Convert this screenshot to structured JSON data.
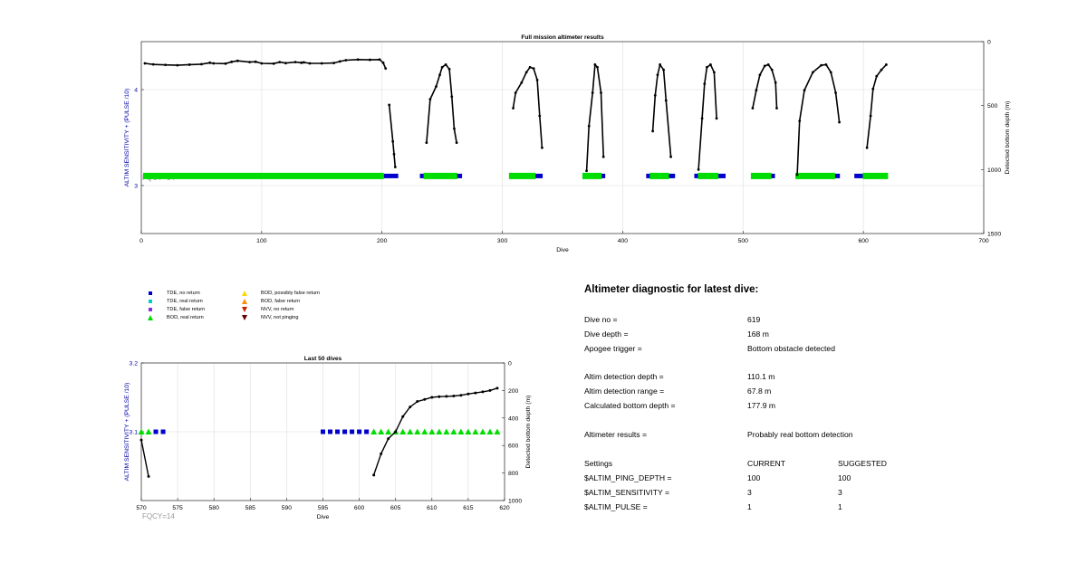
{
  "chart_data": [
    {
      "type": "scatter",
      "title": "Full mission altimeter results",
      "xlabel": "Dive",
      "ylabel_left": "ALTIM SENSITIVITY + (PULSE /10)",
      "ylabel_right": "Detected bottom depth (m)",
      "xlim": [
        0,
        700
      ],
      "ylim_left": [
        2.5,
        4.5
      ],
      "ylim_right": [
        0,
        1500
      ],
      "right_axis_reversed": true,
      "xticks": [
        "0",
        "100",
        "200",
        "300",
        "400",
        "500",
        "600",
        "700"
      ],
      "yticks_left": [
        "3",
        "4"
      ],
      "yticks_right": [
        "0",
        "500",
        "1000",
        "1500"
      ],
      "annotation": "FQCY=14",
      "grid": true,
      "series": [
        {
          "name": "TDE, no return",
          "color": "#0000cc",
          "marker": "square",
          "level": 3.1,
          "segments": [
            [
              203,
              212
            ],
            [
              233,
              237
            ],
            [
              262,
              265
            ],
            [
              327,
              332
            ],
            [
              380,
              384
            ],
            [
              421,
              424
            ],
            [
              438,
              442
            ],
            [
              461,
              464
            ],
            [
              479,
              484
            ],
            [
              522,
              525
            ],
            [
              576,
              579
            ],
            [
              594,
              600
            ]
          ]
        },
        {
          "name": "BOD, real return",
          "color": "#00dd00",
          "marker": "triangle-up",
          "level": 3.1,
          "segments": [
            [
              3,
              200
            ],
            [
              236,
              261
            ],
            [
              307,
              326
            ],
            [
              368,
              381
            ],
            [
              424,
              437
            ],
            [
              464,
              478
            ],
            [
              508,
              522
            ],
            [
              545,
              575
            ],
            [
              601,
              619
            ]
          ]
        },
        {
          "name": "Detected bottom depth",
          "color": "#000000",
          "marker": "dot",
          "axis": "right",
          "traces": [
            [
              [
                3,
                170
              ],
              [
                10,
                178
              ],
              [
                20,
                182
              ],
              [
                30,
                185
              ],
              [
                40,
                180
              ],
              [
                50,
                176
              ],
              [
                57,
                165
              ],
              [
                60,
                170
              ],
              [
                70,
                172
              ],
              [
                75,
                158
              ],
              [
                80,
                150
              ],
              [
                90,
                160
              ],
              [
                95,
                157
              ],
              [
                100,
                170
              ],
              [
                110,
                172
              ],
              [
                115,
                160
              ],
              [
                120,
                168
              ],
              [
                128,
                160
              ],
              [
                133,
                165
              ],
              [
                135,
                162
              ],
              [
                140,
                170
              ],
              [
                150,
                170
              ],
              [
                160,
                167
              ],
              [
                165,
                155
              ],
              [
                170,
                145
              ],
              [
                180,
                140
              ],
              [
                190,
                142
              ],
              [
                198,
                140
              ],
              [
                201,
                165
              ],
              [
                203,
                210
              ]
            ],
            [
              [
                206,
                495
              ],
              [
                209,
                780
              ],
              [
                210,
                880
              ],
              [
                211,
                980
              ]
            ],
            [
              [
                237,
                790
              ],
              [
                240,
                450
              ],
              [
                245,
                350
              ],
              [
                248,
                260
              ],
              [
                250,
                200
              ],
              [
                253,
                180
              ],
              [
                256,
                215
              ],
              [
                258,
                430
              ],
              [
                260,
                680
              ],
              [
                262,
                790
              ]
            ],
            [
              [
                309,
                520
              ],
              [
                311,
                400
              ],
              [
                316,
                320
              ],
              [
                320,
                240
              ],
              [
                323,
                200
              ],
              [
                326,
                210
              ],
              [
                329,
                300
              ],
              [
                331,
                580
              ],
              [
                333,
                830
              ]
            ],
            [
              [
                370,
                1010
              ],
              [
                372,
                660
              ],
              [
                375,
                400
              ],
              [
                377,
                180
              ],
              [
                379,
                200
              ],
              [
                382,
                400
              ],
              [
                384,
                900
              ]
            ],
            [
              [
                425,
                700
              ],
              [
                427,
                420
              ],
              [
                429,
                260
              ],
              [
                431,
                180
              ],
              [
                434,
                220
              ],
              [
                436,
                460
              ],
              [
                440,
                900
              ]
            ],
            [
              [
                463,
                1000
              ],
              [
                466,
                600
              ],
              [
                468,
                330
              ],
              [
                470,
                200
              ],
              [
                473,
                180
              ],
              [
                476,
                240
              ],
              [
                478,
                600
              ]
            ],
            [
              [
                508,
                520
              ],
              [
                511,
                380
              ],
              [
                514,
                260
              ],
              [
                518,
                190
              ],
              [
                521,
                180
              ],
              [
                524,
                220
              ],
              [
                527,
                320
              ],
              [
                528,
                520
              ]
            ],
            [
              [
                545,
                1040
              ],
              [
                547,
                620
              ],
              [
                551,
                380
              ],
              [
                558,
                240
              ],
              [
                565,
                185
              ],
              [
                569,
                180
              ],
              [
                573,
                240
              ],
              [
                577,
                400
              ],
              [
                580,
                630
              ]
            ],
            [
              [
                603,
                830
              ],
              [
                606,
                580
              ],
              [
                608,
                370
              ],
              [
                611,
                270
              ],
              [
                615,
                220
              ],
              [
                619,
                180
              ]
            ]
          ]
        }
      ]
    },
    {
      "type": "scatter",
      "title": "Last 50 dives",
      "xlabel": "Dive",
      "ylabel_left": "ALTIM SENSITIVITY + (PULSE /10)",
      "ylabel_right": "Detected bottom depth (m)",
      "xlim": [
        570,
        620
      ],
      "ylim_left": [
        3.0,
        3.2
      ],
      "ylim_right": [
        0,
        1000
      ],
      "right_axis_reversed": true,
      "xticks": [
        "570",
        "575",
        "580",
        "585",
        "590",
        "595",
        "600",
        "605",
        "610",
        "615",
        "620"
      ],
      "yticks_left": [
        "3.1",
        "3.2"
      ],
      "yticks_right": [
        "0",
        "200",
        "400",
        "600",
        "800",
        "1000"
      ],
      "annotation": "FQCY=14",
      "grid": true,
      "series": [
        {
          "name": "TDE, no return",
          "color": "#0000cc",
          "marker": "square",
          "level": 3.1,
          "x": [
            572,
            573,
            595,
            596,
            597,
            598,
            599,
            600,
            601
          ]
        },
        {
          "name": "BOD, real return",
          "color": "#00dd00",
          "marker": "triangle-up",
          "level": 3.1,
          "x": [
            570,
            571,
            602,
            603,
            604,
            605,
            606,
            607,
            608,
            609,
            610,
            611,
            612,
            613,
            614,
            615,
            616,
            617,
            618,
            619
          ]
        },
        {
          "name": "Detected bottom depth",
          "color": "#000000",
          "marker": "dot",
          "axis": "right",
          "traces": [
            [
              [
                570,
                560
              ],
              [
                571,
                825
              ]
            ],
            [
              [
                602,
                815
              ],
              [
                603,
                660
              ],
              [
                604,
                550
              ],
              [
                605,
                500
              ],
              [
                606,
                390
              ],
              [
                607,
                320
              ],
              [
                608,
                280
              ],
              [
                609,
                265
              ],
              [
                610,
                250
              ],
              [
                611,
                245
              ],
              [
                612,
                243
              ],
              [
                613,
                240
              ],
              [
                614,
                235
              ],
              [
                615,
                225
              ],
              [
                616,
                218
              ],
              [
                617,
                210
              ],
              [
                618,
                200
              ],
              [
                619,
                183
              ]
            ]
          ]
        }
      ]
    }
  ],
  "legend": [
    {
      "label": "TDE, no return",
      "color": "#0000cc",
      "marker": "square"
    },
    {
      "label": "TDE, real return",
      "color": "#00cccc",
      "marker": "square"
    },
    {
      "label": "TDE, false return",
      "color": "#8a2be2",
      "marker": "square"
    },
    {
      "label": "BOD, real return",
      "color": "#00dd00",
      "marker": "triangle-up"
    },
    {
      "label": "BOD, possibly false return",
      "color": "#ffd700",
      "marker": "triangle-up"
    },
    {
      "label": "BOD, false return",
      "color": "#ff8c00",
      "marker": "triangle-up"
    },
    {
      "label": "NVV, no return",
      "color": "#cc2200",
      "marker": "triangle-down"
    },
    {
      "label": "NVV, not pinging",
      "color": "#660000",
      "marker": "triangle-down"
    }
  ],
  "diagnostic": {
    "title": "Altimeter diagnostic for latest dive:",
    "rows": [
      {
        "label": "Dive no =",
        "value": "619"
      },
      {
        "label": "Dive depth =",
        "value": "168 m"
      },
      {
        "label": "Apogee trigger =",
        "value": "Bottom obstacle detected"
      },
      {
        "label": "Altim detection depth =",
        "value": "110.1 m"
      },
      {
        "label": "Altim detection range =",
        "value": "67.8 m"
      },
      {
        "label": "Calculated bottom depth =",
        "value": "177.9 m"
      },
      {
        "label": "Altimeter results =",
        "value": "Probably real bottom detection"
      }
    ],
    "settings": {
      "header": {
        "label": "Settings",
        "current": "CURRENT",
        "suggested": "SUGGESTED"
      },
      "rows": [
        {
          "label": "$ALTIM_PING_DEPTH =",
          "current": "100",
          "suggested": "100"
        },
        {
          "label": "$ALTIM_SENSITIVITY =",
          "current": "3",
          "suggested": "3"
        },
        {
          "label": "$ALTIM_PULSE =",
          "current": "1",
          "suggested": "1"
        }
      ]
    }
  }
}
